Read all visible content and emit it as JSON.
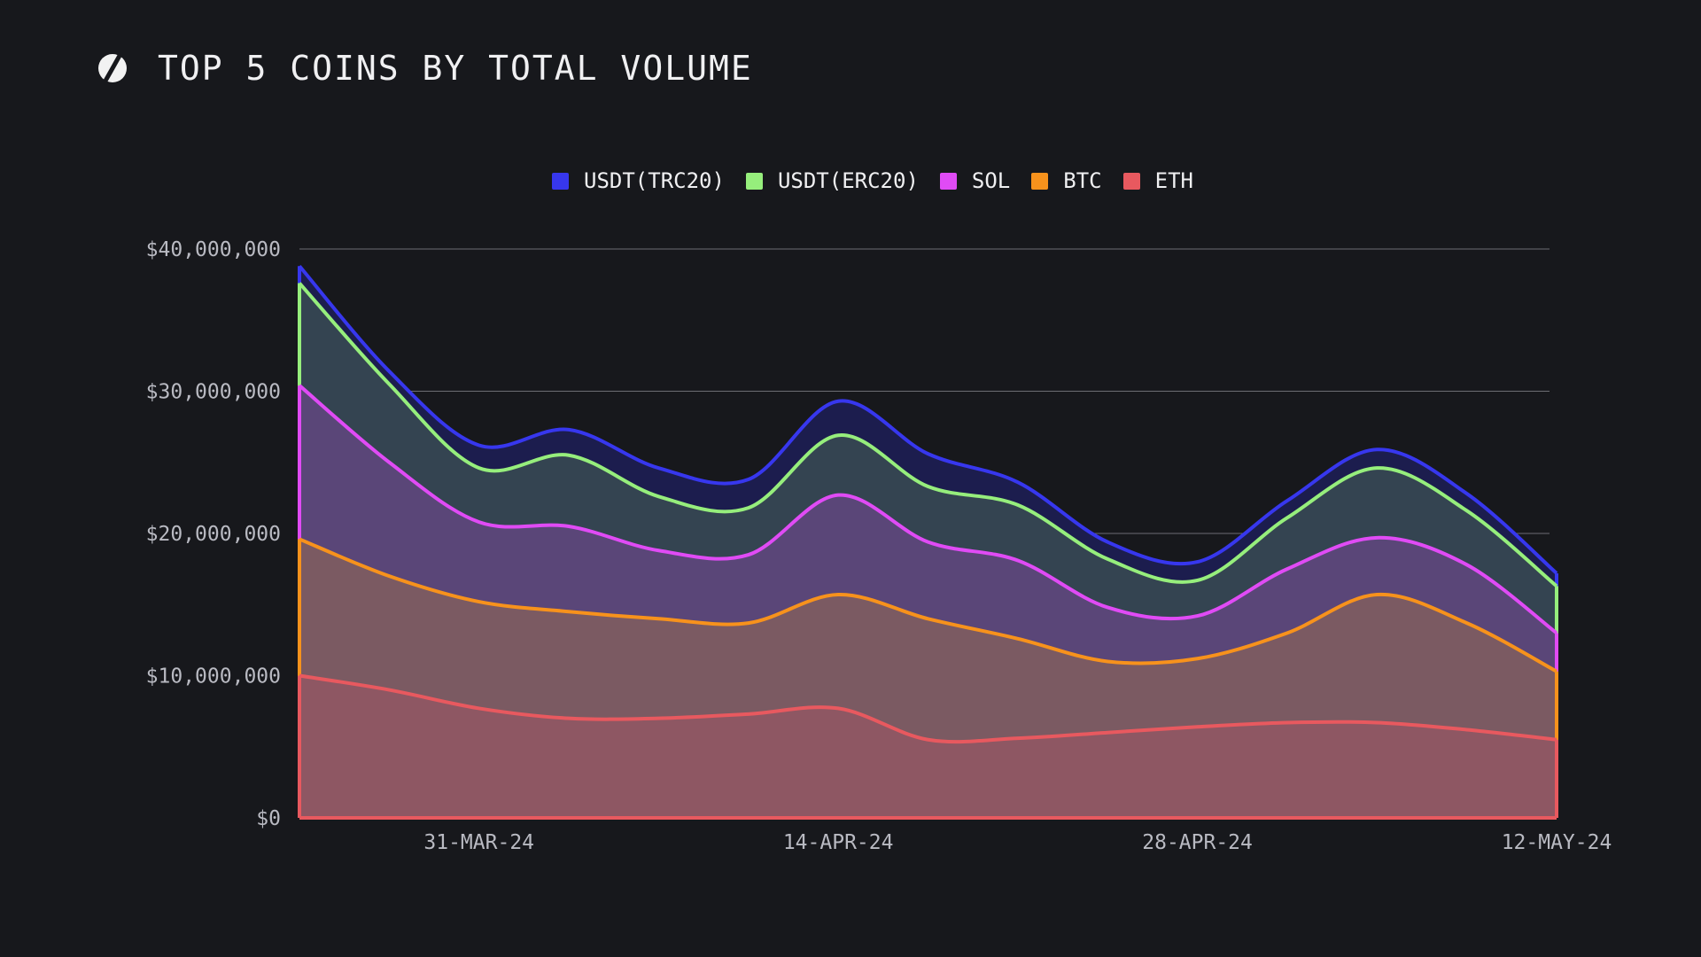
{
  "header": {
    "title": "TOP 5 COINS BY TOTAL VOLUME",
    "logo_icon": "s-logo-icon"
  },
  "chart_data": {
    "type": "area",
    "stacked": true,
    "title": "TOP 5 COINS BY TOTAL VOLUME",
    "xlabel": "",
    "ylabel": "",
    "x": [
      "24-MAR-24",
      "27-MAR-24",
      "31-MAR-24",
      "4-APR-24",
      "7-APR-24",
      "11-APR-24",
      "14-APR-24",
      "18-APR-24",
      "21-APR-24",
      "25-APR-24",
      "28-APR-24",
      "2-MAY-24",
      "5-MAY-24",
      "8-MAY-24",
      "12-MAY-24"
    ],
    "x_ticks": [
      "31-MAR-24",
      "14-APR-24",
      "28-APR-24",
      "12-MAY-24"
    ],
    "y_ticks": [
      "$40,000,000",
      "$30,000,000",
      "$20,000,000",
      "$10,000,000",
      "$0"
    ],
    "ylim": [
      0,
      40000000
    ],
    "grid": true,
    "legend_position": "top-center",
    "series": [
      {
        "name": "ETH",
        "color": "#e8595f",
        "values": [
          10000000,
          9000000,
          7700000,
          7000000,
          7000000,
          7300000,
          7700000,
          5500000,
          5600000,
          6000000,
          6400000,
          6700000,
          6700000,
          6200000,
          5500000
        ]
      },
      {
        "name": "BTC",
        "color": "#f7921c",
        "values": [
          9600000,
          8000000,
          7500000,
          7500000,
          7000000,
          6400000,
          8000000,
          8500000,
          7000000,
          5000000,
          4800000,
          6300000,
          9000000,
          7500000,
          4800000
        ]
      },
      {
        "name": "SOL",
        "color": "#e04bf5",
        "values": [
          10800000,
          8000000,
          5600000,
          6000000,
          4800000,
          4800000,
          7000000,
          5400000,
          5500000,
          3800000,
          3000000,
          4500000,
          4000000,
          4100000,
          2700000
        ]
      },
      {
        "name": "USDT(ERC20)",
        "color": "#96ee7c",
        "values": [
          7200000,
          5500000,
          3800000,
          5000000,
          3800000,
          3300000,
          4200000,
          3900000,
          3900000,
          3400000,
          2500000,
          3600000,
          4900000,
          3800000,
          3300000
        ]
      },
      {
        "name": "USDT(TRC20)",
        "color": "#3737ee",
        "values": [
          1200000,
          900000,
          1600000,
          1800000,
          2000000,
          2000000,
          2400000,
          2300000,
          1600000,
          1200000,
          1300000,
          1200000,
          1300000,
          1200000,
          900000
        ]
      }
    ]
  }
}
